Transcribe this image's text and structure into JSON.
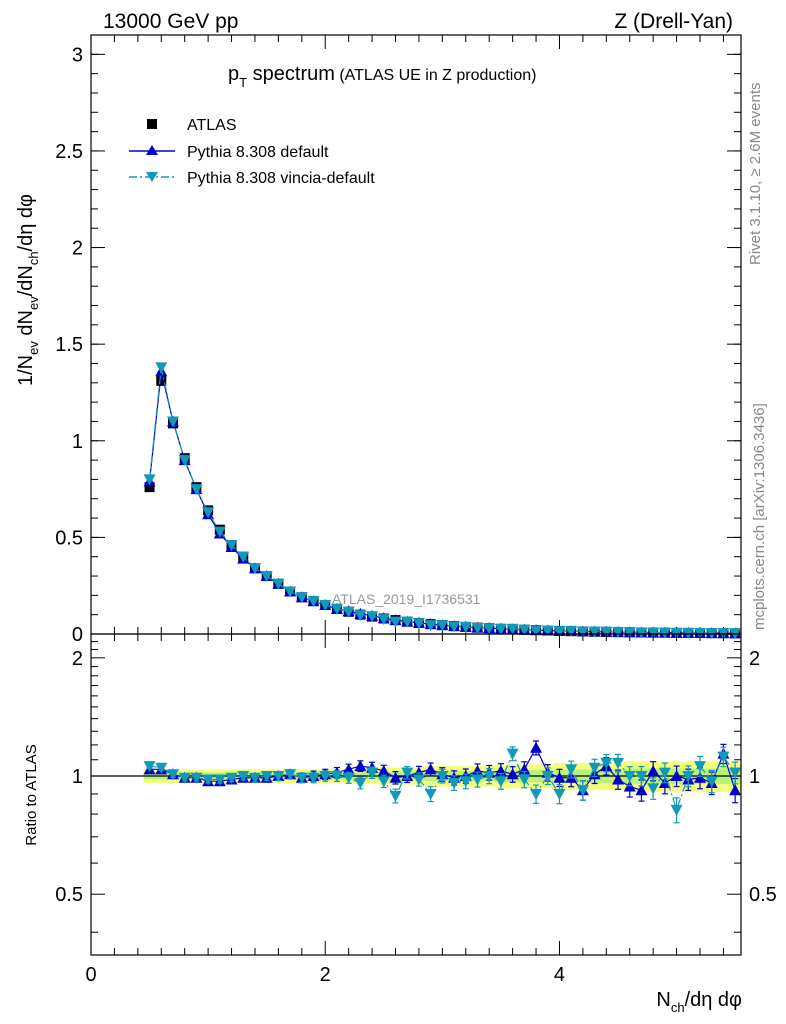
{
  "header": {
    "left": "13000 GeV pp",
    "right": "Z (Drell-Yan)"
  },
  "side_labels": {
    "rivet": "Rivet 3.1.10, ≥ 2.6M events",
    "mcplots": "mcplots.cern.ch [arXiv:1306.3436]"
  },
  "watermark": "ATLAS_2019_I1736531",
  "chart_data": [
    {
      "type": "scatter",
      "panel": "main",
      "title_main": "p",
      "title_sub": "T",
      "title_word": " spectrum",
      "title_suffix": " (ATLAS UE in Z production)",
      "ylabel": "1/N_{ev} dN_{ev}/dN_{ch}/dη dφ",
      "xlim": [
        0,
        5.55
      ],
      "ylim": [
        0,
        3.1
      ],
      "xticks": [
        "0",
        "2",
        "4"
      ],
      "yticks": [
        "0",
        "0.5",
        "1",
        "1.5",
        "2",
        "2.5",
        "3"
      ],
      "x": [
        0.5,
        0.6,
        0.7,
        0.8,
        0.9,
        1.0,
        1.1,
        1.2,
        1.3,
        1.4,
        1.5,
        1.6,
        1.7,
        1.8,
        1.9,
        2.0,
        2.1,
        2.2,
        2.3,
        2.4,
        2.5,
        2.6,
        2.7,
        2.8,
        2.9,
        3.0,
        3.1,
        3.2,
        3.3,
        3.4,
        3.5,
        3.6,
        3.7,
        3.8,
        3.9,
        4.0,
        4.1,
        4.2,
        4.3,
        4.4,
        4.5,
        4.6,
        4.7,
        4.8,
        4.9,
        5.0,
        5.1,
        5.2,
        5.3,
        5.4,
        5.5
      ],
      "series": [
        {
          "name": "ATLAS",
          "marker": "square",
          "color": "#000000",
          "values": [
            0.76,
            1.31,
            1.09,
            0.91,
            0.76,
            0.64,
            0.54,
            0.46,
            0.4,
            0.34,
            0.3,
            0.26,
            0.22,
            0.19,
            0.17,
            0.15,
            0.13,
            0.115,
            0.1,
            0.09,
            0.08,
            0.072,
            0.064,
            0.057,
            0.051,
            0.046,
            0.041,
            0.037,
            0.033,
            0.03,
            0.027,
            0.024,
            0.022,
            0.02,
            0.018,
            0.016,
            0.015,
            0.013,
            0.012,
            0.011,
            0.01,
            0.009,
            0.008,
            0.0075,
            0.007,
            0.006,
            0.0055,
            0.005,
            0.0045,
            0.004,
            0.0037
          ]
        },
        {
          "name": "Pythia 8.308 default",
          "marker": "triangle-up",
          "line": "solid",
          "color": "#0000cc",
          "values": [
            0.79,
            1.36,
            1.1,
            0.9,
            0.75,
            0.62,
            0.52,
            0.45,
            0.39,
            0.34,
            0.3,
            0.26,
            0.22,
            0.19,
            0.17,
            0.15,
            0.13,
            0.118,
            0.105,
            0.094,
            0.082,
            0.072,
            0.064,
            0.058,
            0.051,
            0.046,
            0.041,
            0.037,
            0.033,
            0.031,
            0.027,
            0.024,
            0.022,
            0.02,
            0.018,
            0.016,
            0.015,
            0.013,
            0.012,
            0.011,
            0.01,
            0.009,
            0.008,
            0.007,
            0.007,
            0.006,
            0.0055,
            0.005,
            0.0045,
            0.0045,
            0.0034
          ]
        },
        {
          "name": "Pythia 8.308 vincia-default",
          "marker": "triangle-down",
          "line": "dashdot",
          "color": "#1199bb",
          "values": [
            0.8,
            1.38,
            1.1,
            0.9,
            0.75,
            0.63,
            0.53,
            0.46,
            0.4,
            0.34,
            0.3,
            0.26,
            0.22,
            0.19,
            0.17,
            0.15,
            0.13,
            0.115,
            0.098,
            0.092,
            0.077,
            0.064,
            0.065,
            0.056,
            0.046,
            0.046,
            0.039,
            0.036,
            0.032,
            0.03,
            0.026,
            0.027,
            0.022,
            0.018,
            0.018,
            0.015,
            0.016,
            0.012,
            0.013,
            0.012,
            0.011,
            0.009,
            0.008,
            0.007,
            0.007,
            0.005,
            0.0055,
            0.0052,
            0.0045,
            0.0045,
            0.0038
          ]
        }
      ]
    },
    {
      "type": "scatter",
      "panel": "ratio",
      "ylabel": "Ratio to ATLAS",
      "xlabel": "N_{ch}/dη dφ",
      "xlim": [
        0,
        5.55
      ],
      "ylim": [
        0.35,
        2.3
      ],
      "log_y": true,
      "xticks": [
        "0",
        "2",
        "4"
      ],
      "yticks": [
        "0.5",
        "1",
        "2"
      ],
      "x": [
        0.5,
        0.6,
        0.7,
        0.8,
        0.9,
        1.0,
        1.1,
        1.2,
        1.3,
        1.4,
        1.5,
        1.6,
        1.7,
        1.8,
        1.9,
        2.0,
        2.1,
        2.2,
        2.3,
        2.4,
        2.5,
        2.6,
        2.7,
        2.8,
        2.9,
        3.0,
        3.1,
        3.2,
        3.3,
        3.4,
        3.5,
        3.6,
        3.7,
        3.8,
        3.9,
        4.0,
        4.1,
        4.2,
        4.3,
        4.4,
        4.5,
        4.6,
        4.7,
        4.8,
        4.9,
        5.0,
        5.1,
        5.2,
        5.3,
        5.4,
        5.5
      ],
      "band_halfwidth": [
        0.02,
        0.02,
        0.02,
        0.02,
        0.02,
        0.02,
        0.02,
        0.02,
        0.02,
        0.02,
        0.02,
        0.02,
        0.02,
        0.02,
        0.02,
        0.02,
        0.02,
        0.02,
        0.02,
        0.02,
        0.025,
        0.025,
        0.025,
        0.025,
        0.03,
        0.03,
        0.03,
        0.03,
        0.03,
        0.03,
        0.035,
        0.035,
        0.035,
        0.035,
        0.035,
        0.04,
        0.04,
        0.04,
        0.04,
        0.04,
        0.04,
        0.045,
        0.045,
        0.045,
        0.045,
        0.045,
        0.045,
        0.045,
        0.045,
        0.045,
        0.045
      ],
      "series": [
        {
          "name": "Pythia 8.308 default",
          "marker": "triangle-up",
          "color": "#0000cc",
          "values": [
            1.04,
            1.04,
            1.01,
            0.99,
            0.99,
            0.97,
            0.97,
            0.98,
            0.99,
            0.99,
            0.99,
            1.0,
            1.01,
            0.99,
            1.0,
            1.01,
            1.02,
            1.04,
            1.06,
            1.05,
            1.03,
            0.99,
            1.0,
            1.02,
            1.04,
            1.01,
            0.99,
            1.0,
            1.03,
            1.02,
            1.03,
            1.01,
            1.04,
            1.18,
            1.02,
            0.99,
            0.99,
            0.92,
            1.01,
            1.06,
            0.98,
            0.94,
            0.92,
            1.03,
            0.96,
            1.0,
            0.98,
            0.99,
            0.96,
            1.14,
            0.92
          ]
        },
        {
          "name": "Pythia 8.308 vincia-default",
          "marker": "triangle-down",
          "color": "#1199bb",
          "values": [
            1.06,
            1.05,
            1.01,
            0.99,
            0.99,
            0.98,
            0.98,
            0.99,
            1.0,
            0.99,
            1.0,
            1.0,
            1.01,
            0.99,
            0.99,
            1.0,
            1.0,
            0.99,
            0.96,
            1.02,
            0.97,
            0.89,
            1.02,
            0.98,
            0.9,
            1.0,
            0.96,
            0.97,
            0.98,
            1.0,
            0.97,
            1.14,
            0.98,
            0.9,
            1.0,
            0.9,
            1.04,
            0.92,
            1.05,
            1.08,
            1.08,
            1.0,
            1.0,
            0.93,
            1.02,
            0.82,
            1.0,
            1.06,
            0.97,
            1.12,
            1.02
          ]
        }
      ]
    }
  ]
}
